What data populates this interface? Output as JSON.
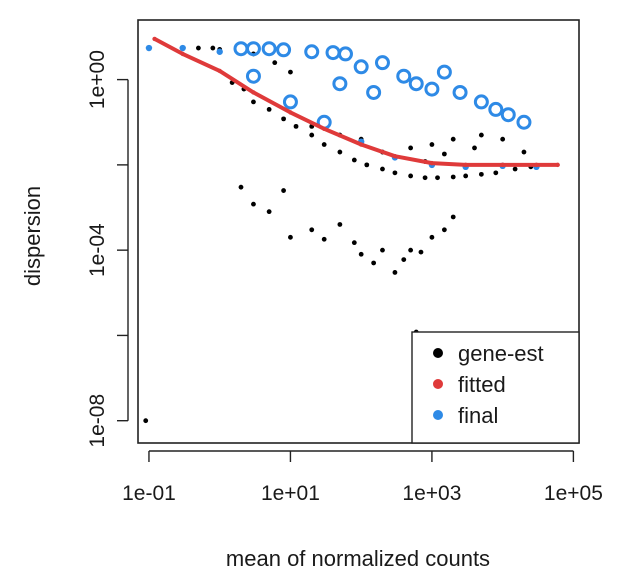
{
  "chart_data": {
    "type": "scatter",
    "xlabel": "mean of normalized counts",
    "ylabel": "dispersion",
    "x_scale": "log",
    "y_scale": "log",
    "xlim": [
      0.07,
      120000
    ],
    "ylim": [
      3e-09,
      25
    ],
    "x_ticks": [
      {
        "value": 0.1,
        "label": "1e-01"
      },
      {
        "value": 10,
        "label": "1e+01"
      },
      {
        "value": 1000,
        "label": "1e+03"
      },
      {
        "value": 100000,
        "label": "1e+05"
      }
    ],
    "y_ticks": [
      {
        "value": 1e-08,
        "label": "1e-08"
      },
      {
        "value": 1e-06,
        "label": ""
      },
      {
        "value": 0.0001,
        "label": "1e-04"
      },
      {
        "value": 0.01,
        "label": ""
      },
      {
        "value": 1,
        "label": "1e+00"
      }
    ],
    "grid": false,
    "legend_position": "bottom-right",
    "series": [
      {
        "name": "gene-est",
        "color": "#000000",
        "points": [
          [
            1,
            5.1
          ],
          [
            1.5,
            0.85
          ],
          [
            2.2,
            0.6
          ],
          [
            3,
            0.3
          ],
          [
            5,
            0.2
          ],
          [
            8,
            0.12
          ],
          [
            12,
            0.08
          ],
          [
            20,
            0.05
          ],
          [
            30,
            0.03
          ],
          [
            50,
            0.02
          ],
          [
            80,
            0.013
          ],
          [
            120,
            0.01
          ],
          [
            200,
            0.008
          ],
          [
            300,
            0.0065
          ],
          [
            500,
            0.0055
          ],
          [
            800,
            0.005
          ],
          [
            1200,
            0.005
          ],
          [
            2000,
            0.0052
          ],
          [
            3000,
            0.0055
          ],
          [
            5000,
            0.006
          ],
          [
            8000,
            0.0065
          ],
          [
            15000,
            0.008
          ],
          [
            25000,
            0.009
          ],
          [
            2,
            0.003
          ],
          [
            3,
            0.0012
          ],
          [
            5,
            0.0008
          ],
          [
            8,
            0.0025
          ],
          [
            10,
            0.0002
          ],
          [
            20,
            0.0003
          ],
          [
            30,
            0.00018
          ],
          [
            50,
            0.0004
          ],
          [
            80,
            0.00015
          ],
          [
            100,
            8e-05
          ],
          [
            150,
            5e-05
          ],
          [
            200,
            0.0001
          ],
          [
            300,
            3e-05
          ],
          [
            400,
            6e-05
          ],
          [
            500,
            0.0001
          ],
          [
            700,
            9e-05
          ],
          [
            600,
            1.2e-06
          ],
          [
            1000,
            0.0002
          ],
          [
            1500,
            0.0003
          ],
          [
            2000,
            0.0006
          ],
          [
            20,
            0.08
          ],
          [
            50,
            0.05
          ],
          [
            100,
            0.04
          ],
          [
            200,
            0.02
          ],
          [
            500,
            0.025
          ],
          [
            1000,
            0.03
          ],
          [
            2000,
            0.04
          ],
          [
            5000,
            0.05
          ],
          [
            10000,
            0.04
          ],
          [
            0.5,
            5.5
          ],
          [
            0.8,
            5.5
          ],
          [
            3,
            4
          ],
          [
            6,
            2.5
          ],
          [
            10,
            1.5
          ],
          [
            0.09,
            1e-08
          ],
          [
            300,
            0.015
          ],
          [
            800,
            0.012
          ],
          [
            1500,
            0.018
          ],
          [
            4000,
            0.025
          ],
          [
            20000,
            0.02
          ]
        ]
      },
      {
        "name": "fitted",
        "color": "#df3a3a",
        "points": [
          [
            0.12,
            9
          ],
          [
            0.3,
            4
          ],
          [
            1,
            1.6
          ],
          [
            3,
            0.5
          ],
          [
            10,
            0.17
          ],
          [
            30,
            0.07
          ],
          [
            100,
            0.03
          ],
          [
            300,
            0.016
          ],
          [
            1000,
            0.011
          ],
          [
            3000,
            0.01
          ],
          [
            10000,
            0.01
          ],
          [
            30000,
            0.01
          ],
          [
            60000,
            0.01
          ]
        ]
      },
      {
        "name": "final",
        "color": "#2e8ae6",
        "points": [
          [
            0.1,
            5.5
          ],
          [
            0.3,
            5.5
          ],
          [
            1,
            4.5
          ],
          [
            3,
            1.2
          ],
          [
            10,
            0.3
          ],
          [
            30,
            0.1
          ],
          [
            100,
            0.035
          ],
          [
            300,
            0.015
          ],
          [
            1000,
            0.01
          ],
          [
            3000,
            0.009
          ],
          [
            10000,
            0.0095
          ],
          [
            30000,
            0.009
          ],
          [
            2,
            5.3
          ],
          [
            3,
            5.3
          ],
          [
            5,
            5.3
          ],
          [
            8,
            5
          ],
          [
            20,
            4.5
          ],
          [
            40,
            4.3
          ],
          [
            60,
            4
          ],
          [
            100,
            2
          ],
          [
            200,
            2.5
          ],
          [
            400,
            1.2
          ],
          [
            600,
            0.8
          ],
          [
            1000,
            0.6
          ],
          [
            1500,
            1.5
          ],
          [
            2500,
            0.5
          ],
          [
            5000,
            0.3
          ],
          [
            8000,
            0.2
          ],
          [
            12000,
            0.15
          ],
          [
            20000,
            0.1
          ],
          [
            50,
            0.8
          ],
          [
            150,
            0.5
          ]
        ]
      }
    ]
  }
}
